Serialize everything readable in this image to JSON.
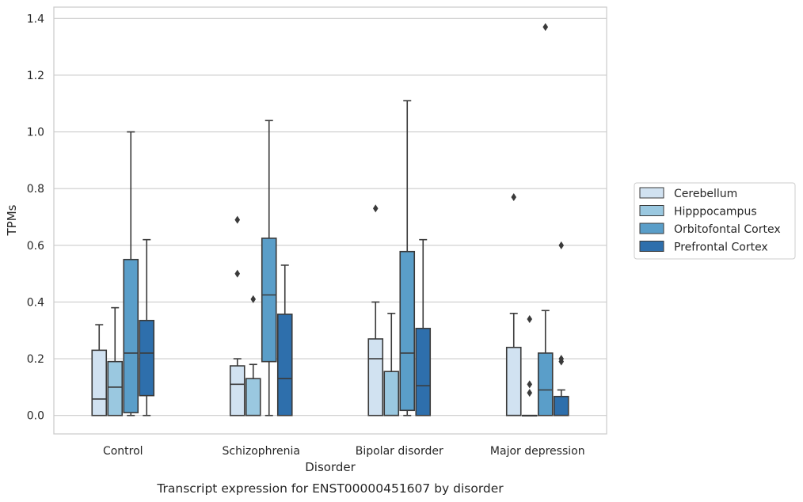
{
  "chart_data": {
    "type": "boxplot",
    "caption": "Transcript expression for ENST00000451607 by disorder",
    "xlabel": "Disorder",
    "ylabel": "TPMs",
    "ylim": [
      -0.065,
      1.44
    ],
    "yticks": [
      "0.0",
      "0.2",
      "0.4",
      "0.6",
      "0.8",
      "1.0",
      "1.2",
      "1.4"
    ],
    "ytick_values": [
      0,
      0.2,
      0.4,
      0.6,
      0.8,
      1.0,
      1.2,
      1.4
    ],
    "grid": "horizontal",
    "legend_position": "right",
    "categories": [
      "Control",
      "Schizophrenia",
      "Bipolar disorder",
      "Major depression"
    ],
    "series": [
      {
        "name": "Cerebellum",
        "color": "#d1e2f1",
        "boxes": [
          {
            "whislo": 0,
            "q1": 0,
            "med": 0.058,
            "q3": 0.23,
            "whishi": 0.32,
            "fliers": []
          },
          {
            "whislo": 0,
            "q1": 0,
            "med": 0.11,
            "q3": 0.175,
            "whishi": 0.2,
            "fliers": [
              0.5,
              0.69
            ]
          },
          {
            "whislo": 0,
            "q1": 0,
            "med": 0.2,
            "q3": 0.27,
            "whishi": 0.4,
            "fliers": [
              0.73
            ]
          },
          {
            "whislo": 0,
            "q1": 0,
            "med": 0,
            "q3": 0.24,
            "whishi": 0.36,
            "fliers": [
              0.77
            ]
          }
        ]
      },
      {
        "name": "Hipppocampus",
        "color": "#9ac8e0",
        "boxes": [
          {
            "whislo": 0,
            "q1": 0,
            "med": 0.1,
            "q3": 0.19,
            "whishi": 0.38,
            "fliers": []
          },
          {
            "whislo": 0,
            "q1": 0,
            "med": 0,
            "q3": 0.13,
            "whishi": 0.18,
            "fliers": [
              0.41
            ]
          },
          {
            "whislo": 0,
            "q1": 0,
            "med": 0,
            "q3": 0.155,
            "whishi": 0.36,
            "fliers": []
          },
          {
            "whislo": 0,
            "q1": 0,
            "med": 0,
            "q3": 0,
            "whishi": 0,
            "fliers": [
              0.08,
              0.11,
              0.34
            ]
          }
        ]
      },
      {
        "name": "Orbitofontal Cortex",
        "color": "#5a9ec9",
        "boxes": [
          {
            "whislo": 0,
            "q1": 0.01,
            "med": 0.22,
            "q3": 0.55,
            "whishi": 1.0,
            "fliers": []
          },
          {
            "whislo": 0,
            "q1": 0.19,
            "med": 0.425,
            "q3": 0.625,
            "whishi": 1.04,
            "fliers": []
          },
          {
            "whislo": 0,
            "q1": 0.018,
            "med": 0.22,
            "q3": 0.578,
            "whishi": 1.11,
            "fliers": []
          },
          {
            "whislo": 0,
            "q1": 0,
            "med": 0.09,
            "q3": 0.22,
            "whishi": 0.37,
            "fliers": [
              1.37
            ]
          }
        ]
      },
      {
        "name": "Prefrontal Cortex",
        "color": "#2e6fac",
        "boxes": [
          {
            "whislo": 0,
            "q1": 0.07,
            "med": 0.22,
            "q3": 0.335,
            "whishi": 0.62,
            "fliers": []
          },
          {
            "whislo": 0,
            "q1": 0,
            "med": 0.13,
            "q3": 0.357,
            "whishi": 0.53,
            "fliers": []
          },
          {
            "whislo": 0,
            "q1": 0,
            "med": 0.105,
            "q3": 0.307,
            "whishi": 0.62,
            "fliers": []
          },
          {
            "whislo": 0,
            "q1": 0,
            "med": 0,
            "q3": 0.067,
            "whishi": 0.09,
            "fliers": [
              0.19,
              0.2,
              0.6
            ]
          }
        ]
      }
    ]
  }
}
